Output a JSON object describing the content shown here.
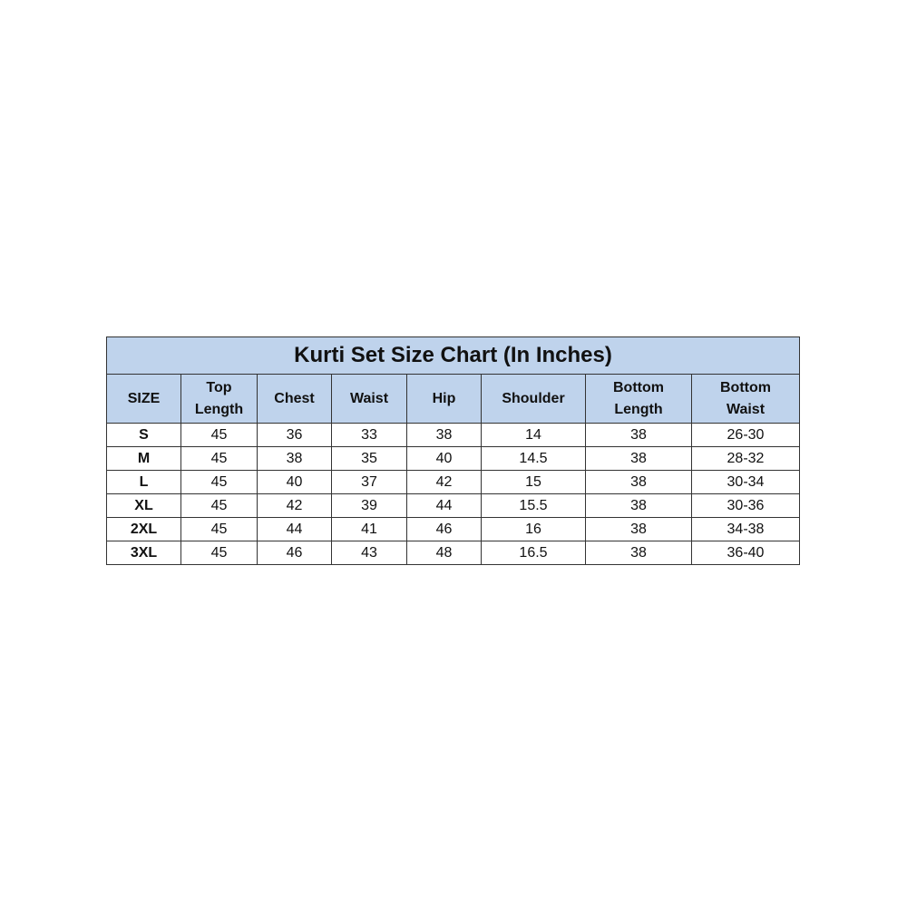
{
  "size_chart": {
    "title": "Kurti Set Size Chart (In Inches)",
    "header_color": "#bfd3ec",
    "columns": [
      [
        "SIZE"
      ],
      [
        "Top",
        "Length"
      ],
      [
        "Chest"
      ],
      [
        "Waist"
      ],
      [
        "Hip"
      ],
      [
        "Shoulder"
      ],
      [
        "Bottom",
        "Length"
      ],
      [
        "Bottom",
        "Waist"
      ]
    ],
    "rows": [
      [
        "S",
        "45",
        "36",
        "33",
        "38",
        "14",
        "38",
        "26-30"
      ],
      [
        "M",
        "45",
        "38",
        "35",
        "40",
        "14.5",
        "38",
        "28-32"
      ],
      [
        "L",
        "45",
        "40",
        "37",
        "42",
        "15",
        "38",
        "30-34"
      ],
      [
        "XL",
        "45",
        "42",
        "39",
        "44",
        "15.5",
        "38",
        "30-36"
      ],
      [
        "2XL",
        "45",
        "44",
        "41",
        "46",
        "16",
        "38",
        "34-38"
      ],
      [
        "3XL",
        "45",
        "46",
        "43",
        "48",
        "16.5",
        "38",
        "36-40"
      ]
    ]
  }
}
